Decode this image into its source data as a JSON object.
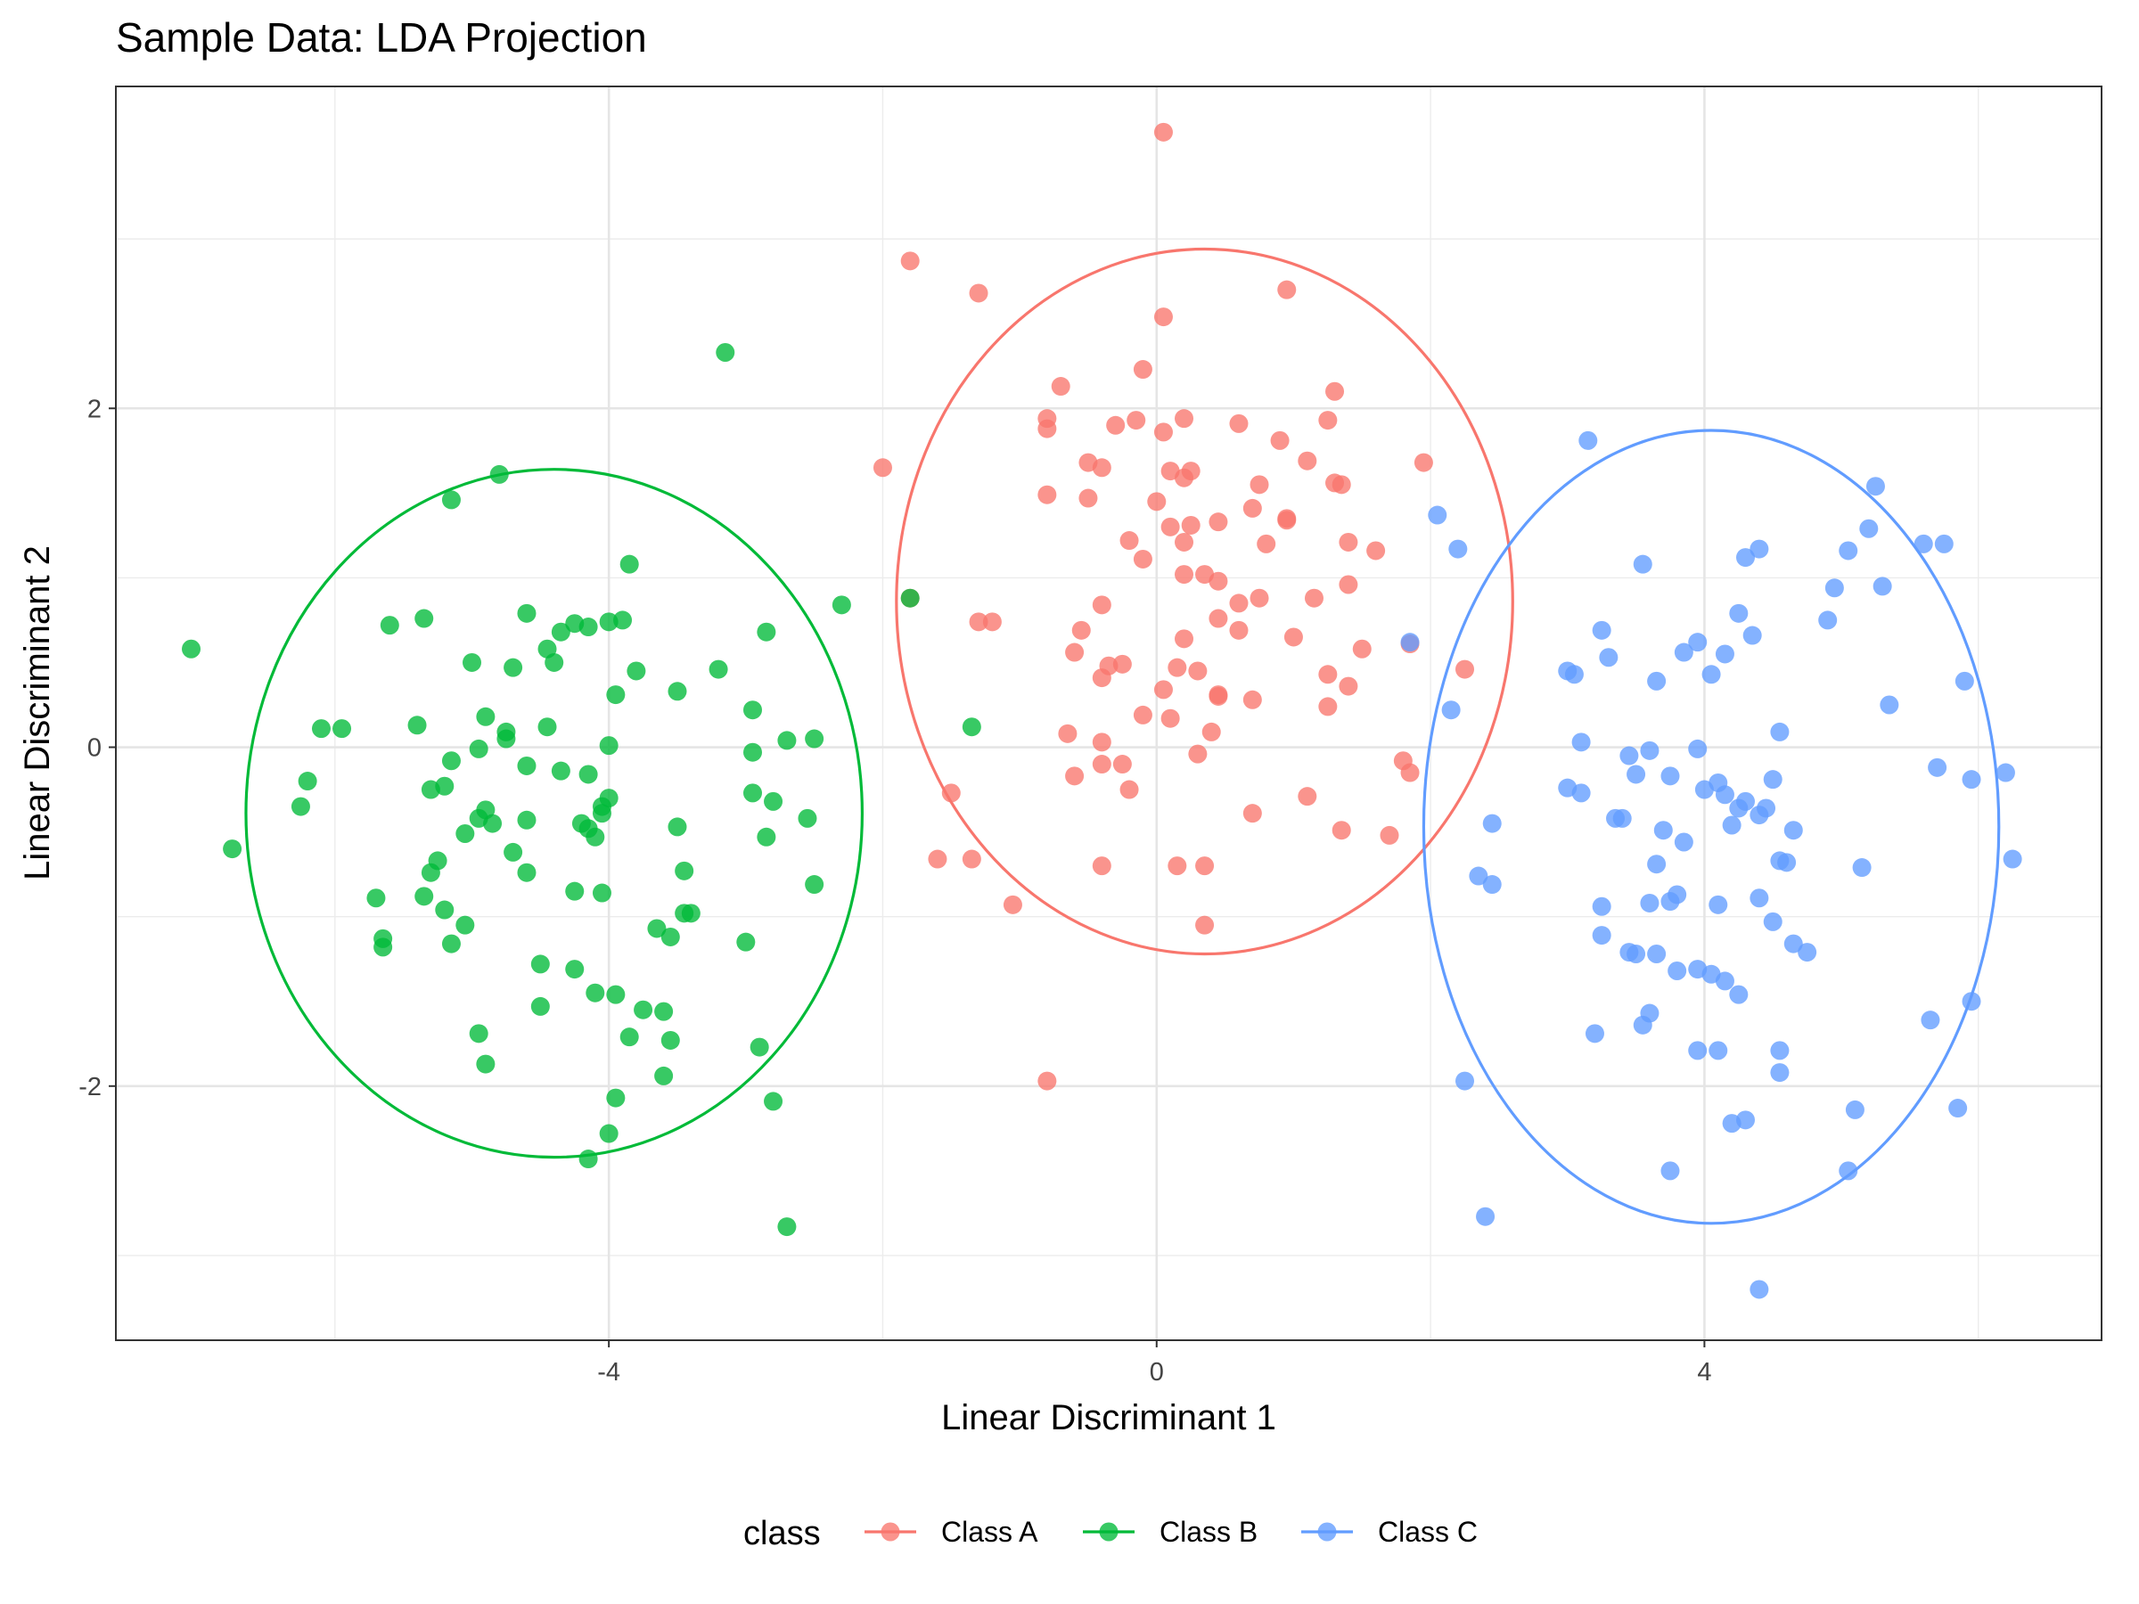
{
  "chart_data": {
    "type": "scatter",
    "title": "Sample Data: LDA Projection",
    "xlabel": "Linear Discriminant 1",
    "ylabel": "Linear Discriminant 2",
    "xlim": [
      -7.6,
      6.9
    ],
    "ylim": [
      -3.5,
      3.9
    ],
    "x_major_ticks": [
      -4,
      0,
      4
    ],
    "x_minor_ticks": [
      -6,
      -2,
      2,
      6
    ],
    "y_major_ticks": [
      -2,
      0,
      2
    ],
    "y_minor_ticks": [
      -3,
      -1,
      1,
      3
    ],
    "x_tick_labels": [
      "-4",
      "0",
      "4"
    ],
    "y_tick_labels": [
      "-2",
      "0",
      "2"
    ],
    "grid": true,
    "legend": {
      "title": "class",
      "position": "bottom"
    },
    "series": [
      {
        "name": "Class A",
        "color": "#F8766D",
        "ellipse": {
          "cx": 0.35,
          "cy": 0.86,
          "rx": 2.25,
          "ry": 2.08
        },
        "points": [
          [
            0.05,
            3.63
          ],
          [
            -1.8,
            2.87
          ],
          [
            -1.3,
            2.68
          ],
          [
            0.95,
            2.7
          ],
          [
            0.05,
            2.54
          ],
          [
            -0.1,
            2.23
          ],
          [
            -0.7,
            2.13
          ],
          [
            1.3,
            2.1
          ],
          [
            -0.8,
            1.94
          ],
          [
            -0.8,
            1.88
          ],
          [
            -0.3,
            1.9
          ],
          [
            -0.15,
            1.93
          ],
          [
            0.2,
            1.94
          ],
          [
            0.6,
            1.91
          ],
          [
            0.05,
            1.86
          ],
          [
            1.25,
            1.93
          ],
          [
            0.9,
            1.81
          ],
          [
            -0.4,
            1.65
          ],
          [
            -0.5,
            1.68
          ],
          [
            0.1,
            1.63
          ],
          [
            0.25,
            1.63
          ],
          [
            0.2,
            1.59
          ],
          [
            1.1,
            1.69
          ],
          [
            1.95,
            1.68
          ],
          [
            -2.0,
            1.65
          ],
          [
            0.75,
            1.55
          ],
          [
            1.3,
            1.56
          ],
          [
            1.35,
            1.55
          ],
          [
            -0.8,
            1.49
          ],
          [
            -0.5,
            1.47
          ],
          [
            0.0,
            1.45
          ],
          [
            0.7,
            1.41
          ],
          [
            0.45,
            1.33
          ],
          [
            0.25,
            1.31
          ],
          [
            0.1,
            1.3
          ],
          [
            0.95,
            1.34
          ],
          [
            0.95,
            1.35
          ],
          [
            -0.2,
            1.22
          ],
          [
            0.2,
            1.21
          ],
          [
            0.8,
            1.2
          ],
          [
            1.4,
            1.21
          ],
          [
            1.6,
            1.16
          ],
          [
            -0.1,
            1.11
          ],
          [
            0.35,
            1.02
          ],
          [
            0.2,
            1.02
          ],
          [
            0.45,
            0.98
          ],
          [
            1.4,
            0.96
          ],
          [
            0.75,
            0.88
          ],
          [
            1.15,
            0.88
          ],
          [
            -0.4,
            0.84
          ],
          [
            0.6,
            0.85
          ],
          [
            -1.8,
            0.88
          ],
          [
            -1.3,
            0.74
          ],
          [
            -1.2,
            0.74
          ],
          [
            0.45,
            0.76
          ],
          [
            -0.55,
            0.69
          ],
          [
            0.6,
            0.69
          ],
          [
            0.2,
            0.64
          ],
          [
            1.0,
            0.65
          ],
          [
            1.5,
            0.58
          ],
          [
            1.85,
            0.61
          ],
          [
            -0.6,
            0.56
          ],
          [
            -0.35,
            0.48
          ],
          [
            -0.25,
            0.49
          ],
          [
            0.15,
            0.47
          ],
          [
            0.3,
            0.45
          ],
          [
            1.25,
            0.43
          ],
          [
            -0.4,
            0.41
          ],
          [
            1.4,
            0.36
          ],
          [
            0.05,
            0.34
          ],
          [
            0.45,
            0.3
          ],
          [
            0.45,
            0.31
          ],
          [
            0.7,
            0.28
          ],
          [
            1.25,
            0.24
          ],
          [
            2.25,
            0.46
          ],
          [
            -0.1,
            0.19
          ],
          [
            0.1,
            0.17
          ],
          [
            -0.65,
            0.08
          ],
          [
            0.4,
            0.09
          ],
          [
            -0.4,
            0.03
          ],
          [
            0.3,
            -0.04
          ],
          [
            1.8,
            -0.08
          ],
          [
            -0.4,
            -0.1
          ],
          [
            -0.25,
            -0.1
          ],
          [
            1.85,
            -0.15
          ],
          [
            -0.6,
            -0.17
          ],
          [
            -0.2,
            -0.25
          ],
          [
            -1.5,
            -0.27
          ],
          [
            1.1,
            -0.29
          ],
          [
            0.7,
            -0.39
          ],
          [
            1.35,
            -0.49
          ],
          [
            1.7,
            -0.52
          ],
          [
            -1.6,
            -0.66
          ],
          [
            -1.35,
            -0.66
          ],
          [
            -0.4,
            -0.7
          ],
          [
            0.15,
            -0.7
          ],
          [
            0.35,
            -0.7
          ],
          [
            -1.05,
            -0.93
          ],
          [
            0.35,
            -1.05
          ],
          [
            -0.8,
            -1.97
          ]
        ]
      },
      {
        "name": "Class B",
        "color": "#00BA38",
        "ellipse": {
          "cx": -4.4,
          "cy": -0.39,
          "rx": 2.25,
          "ry": 2.03
        },
        "points": [
          [
            -3.15,
            2.33
          ],
          [
            -4.8,
            1.61
          ],
          [
            -5.15,
            1.46
          ],
          [
            -3.85,
            1.08
          ],
          [
            -7.05,
            0.58
          ],
          [
            -6.75,
            -0.6
          ],
          [
            -4.6,
            0.79
          ],
          [
            -5.6,
            0.72
          ],
          [
            -5.35,
            0.76
          ],
          [
            -4.25,
            0.73
          ],
          [
            -4.15,
            0.71
          ],
          [
            -4.0,
            0.74
          ],
          [
            -3.9,
            0.75
          ],
          [
            -4.35,
            0.68
          ],
          [
            -4.45,
            0.58
          ],
          [
            -2.3,
            0.84
          ],
          [
            -1.8,
            0.88
          ],
          [
            -5.0,
            0.5
          ],
          [
            -4.7,
            0.47
          ],
          [
            -4.4,
            0.5
          ],
          [
            -3.8,
            0.45
          ],
          [
            -3.2,
            0.46
          ],
          [
            -2.85,
            0.68
          ],
          [
            -3.95,
            0.31
          ],
          [
            -3.5,
            0.33
          ],
          [
            -2.95,
            0.22
          ],
          [
            -5.4,
            0.13
          ],
          [
            -4.9,
            0.18
          ],
          [
            -4.75,
            0.09
          ],
          [
            -4.45,
            0.12
          ],
          [
            -6.1,
            0.11
          ],
          [
            -5.95,
            0.11
          ],
          [
            -4.75,
            0.05
          ],
          [
            -4.95,
            -0.01
          ],
          [
            -4.0,
            0.01
          ],
          [
            -2.7,
            0.04
          ],
          [
            -2.5,
            0.05
          ],
          [
            -1.35,
            0.12
          ],
          [
            -5.15,
            -0.08
          ],
          [
            -4.6,
            -0.11
          ],
          [
            -4.35,
            -0.14
          ],
          [
            -4.15,
            -0.16
          ],
          [
            -2.95,
            -0.03
          ],
          [
            -6.2,
            -0.2
          ],
          [
            -6.25,
            -0.35
          ],
          [
            -5.3,
            -0.25
          ],
          [
            -5.2,
            -0.23
          ],
          [
            -4.0,
            -0.3
          ],
          [
            -4.05,
            -0.35
          ],
          [
            -4.05,
            -0.39
          ],
          [
            -2.95,
            -0.27
          ],
          [
            -2.8,
            -0.32
          ],
          [
            -4.9,
            -0.37
          ],
          [
            -4.95,
            -0.42
          ],
          [
            -4.85,
            -0.45
          ],
          [
            -4.6,
            -0.43
          ],
          [
            -4.2,
            -0.45
          ],
          [
            -4.15,
            -0.48
          ],
          [
            -4.1,
            -0.53
          ],
          [
            -3.5,
            -0.47
          ],
          [
            -2.55,
            -0.42
          ],
          [
            -5.05,
            -0.51
          ],
          [
            -4.7,
            -0.62
          ],
          [
            -5.25,
            -0.67
          ],
          [
            -5.3,
            -0.74
          ],
          [
            -4.6,
            -0.74
          ],
          [
            -4.25,
            -0.85
          ],
          [
            -4.05,
            -0.86
          ],
          [
            -3.45,
            -0.73
          ],
          [
            -2.85,
            -0.53
          ],
          [
            -2.5,
            -0.81
          ],
          [
            -5.7,
            -0.89
          ],
          [
            -5.35,
            -0.88
          ],
          [
            -5.2,
            -0.96
          ],
          [
            -5.05,
            -1.05
          ],
          [
            -3.45,
            -0.98
          ],
          [
            -3.4,
            -0.98
          ],
          [
            -5.65,
            -1.13
          ],
          [
            -5.65,
            -1.18
          ],
          [
            -5.15,
            -1.16
          ],
          [
            -3.65,
            -1.07
          ],
          [
            -3.55,
            -1.12
          ],
          [
            -3.0,
            -1.15
          ],
          [
            -4.5,
            -1.28
          ],
          [
            -4.25,
            -1.31
          ],
          [
            -4.1,
            -1.45
          ],
          [
            -3.95,
            -1.46
          ],
          [
            -4.5,
            -1.53
          ],
          [
            -3.75,
            -1.55
          ],
          [
            -3.6,
            -1.56
          ],
          [
            -4.95,
            -1.69
          ],
          [
            -3.85,
            -1.71
          ],
          [
            -3.55,
            -1.73
          ],
          [
            -2.9,
            -1.77
          ],
          [
            -4.9,
            -1.87
          ],
          [
            -3.6,
            -1.94
          ],
          [
            -3.95,
            -2.07
          ],
          [
            -2.8,
            -2.09
          ],
          [
            -4.0,
            -2.28
          ],
          [
            -4.15,
            -2.43
          ],
          [
            -2.7,
            -2.83
          ]
        ]
      },
      {
        "name": "Class C",
        "color": "#619CFF",
        "ellipse": {
          "cx": 4.05,
          "cy": -0.47,
          "rx": 2.1,
          "ry": 2.34
        },
        "points": [
          [
            3.15,
            1.81
          ],
          [
            5.25,
            1.54
          ],
          [
            2.05,
            1.37
          ],
          [
            5.2,
            1.29
          ],
          [
            5.6,
            1.2
          ],
          [
            5.75,
            1.2
          ],
          [
            2.2,
            1.17
          ],
          [
            4.4,
            1.17
          ],
          [
            5.05,
            1.16
          ],
          [
            3.55,
            1.08
          ],
          [
            4.3,
            1.12
          ],
          [
            4.95,
            0.94
          ],
          [
            5.3,
            0.95
          ],
          [
            4.25,
            0.79
          ],
          [
            4.9,
            0.75
          ],
          [
            3.25,
            0.69
          ],
          [
            4.35,
            0.66
          ],
          [
            1.85,
            0.62
          ],
          [
            3.95,
            0.62
          ],
          [
            3.85,
            0.56
          ],
          [
            4.15,
            0.55
          ],
          [
            3.3,
            0.53
          ],
          [
            3.0,
            0.45
          ],
          [
            3.05,
            0.43
          ],
          [
            4.05,
            0.43
          ],
          [
            3.65,
            0.39
          ],
          [
            5.9,
            0.39
          ],
          [
            5.35,
            0.25
          ],
          [
            2.15,
            0.22
          ],
          [
            4.55,
            0.09
          ],
          [
            3.1,
            0.03
          ],
          [
            3.95,
            -0.01
          ],
          [
            3.6,
            -0.02
          ],
          [
            3.45,
            -0.05
          ],
          [
            5.7,
            -0.12
          ],
          [
            6.2,
            -0.15
          ],
          [
            3.5,
            -0.16
          ],
          [
            3.75,
            -0.17
          ],
          [
            4.5,
            -0.19
          ],
          [
            5.95,
            -0.19
          ],
          [
            4.1,
            -0.21
          ],
          [
            4.15,
            -0.28
          ],
          [
            3.0,
            -0.24
          ],
          [
            3.1,
            -0.27
          ],
          [
            4.3,
            -0.32
          ],
          [
            4.0,
            -0.25
          ],
          [
            4.45,
            -0.36
          ],
          [
            4.25,
            -0.36
          ],
          [
            4.4,
            -0.4
          ],
          [
            3.35,
            -0.42
          ],
          [
            3.4,
            -0.42
          ],
          [
            4.2,
            -0.46
          ],
          [
            4.65,
            -0.49
          ],
          [
            2.45,
            -0.45
          ],
          [
            3.7,
            -0.49
          ],
          [
            3.85,
            -0.56
          ],
          [
            4.55,
            -0.67
          ],
          [
            4.6,
            -0.68
          ],
          [
            6.25,
            -0.66
          ],
          [
            3.65,
            -0.69
          ],
          [
            5.15,
            -0.71
          ],
          [
            2.35,
            -0.76
          ],
          [
            2.45,
            -0.81
          ],
          [
            3.8,
            -0.87
          ],
          [
            3.6,
            -0.92
          ],
          [
            3.75,
            -0.91
          ],
          [
            4.1,
            -0.93
          ],
          [
            4.4,
            -0.89
          ],
          [
            3.25,
            -0.94
          ],
          [
            4.5,
            -1.03
          ],
          [
            3.25,
            -1.11
          ],
          [
            4.65,
            -1.16
          ],
          [
            4.75,
            -1.21
          ],
          [
            3.45,
            -1.21
          ],
          [
            3.5,
            -1.22
          ],
          [
            3.65,
            -1.22
          ],
          [
            3.8,
            -1.32
          ],
          [
            3.95,
            -1.31
          ],
          [
            4.05,
            -1.34
          ],
          [
            4.15,
            -1.38
          ],
          [
            4.25,
            -1.46
          ],
          [
            5.95,
            -1.5
          ],
          [
            3.6,
            -1.57
          ],
          [
            3.55,
            -1.64
          ],
          [
            5.65,
            -1.61
          ],
          [
            3.2,
            -1.69
          ],
          [
            3.95,
            -1.79
          ],
          [
            4.1,
            -1.79
          ],
          [
            4.55,
            -1.79
          ],
          [
            4.55,
            -1.92
          ],
          [
            2.25,
            -1.97
          ],
          [
            5.85,
            -2.13
          ],
          [
            5.1,
            -2.14
          ],
          [
            4.3,
            -2.2
          ],
          [
            4.2,
            -2.22
          ],
          [
            5.05,
            -2.5
          ],
          [
            3.75,
            -2.5
          ],
          [
            2.4,
            -2.77
          ],
          [
            4.4,
            -3.2
          ]
        ]
      }
    ]
  }
}
